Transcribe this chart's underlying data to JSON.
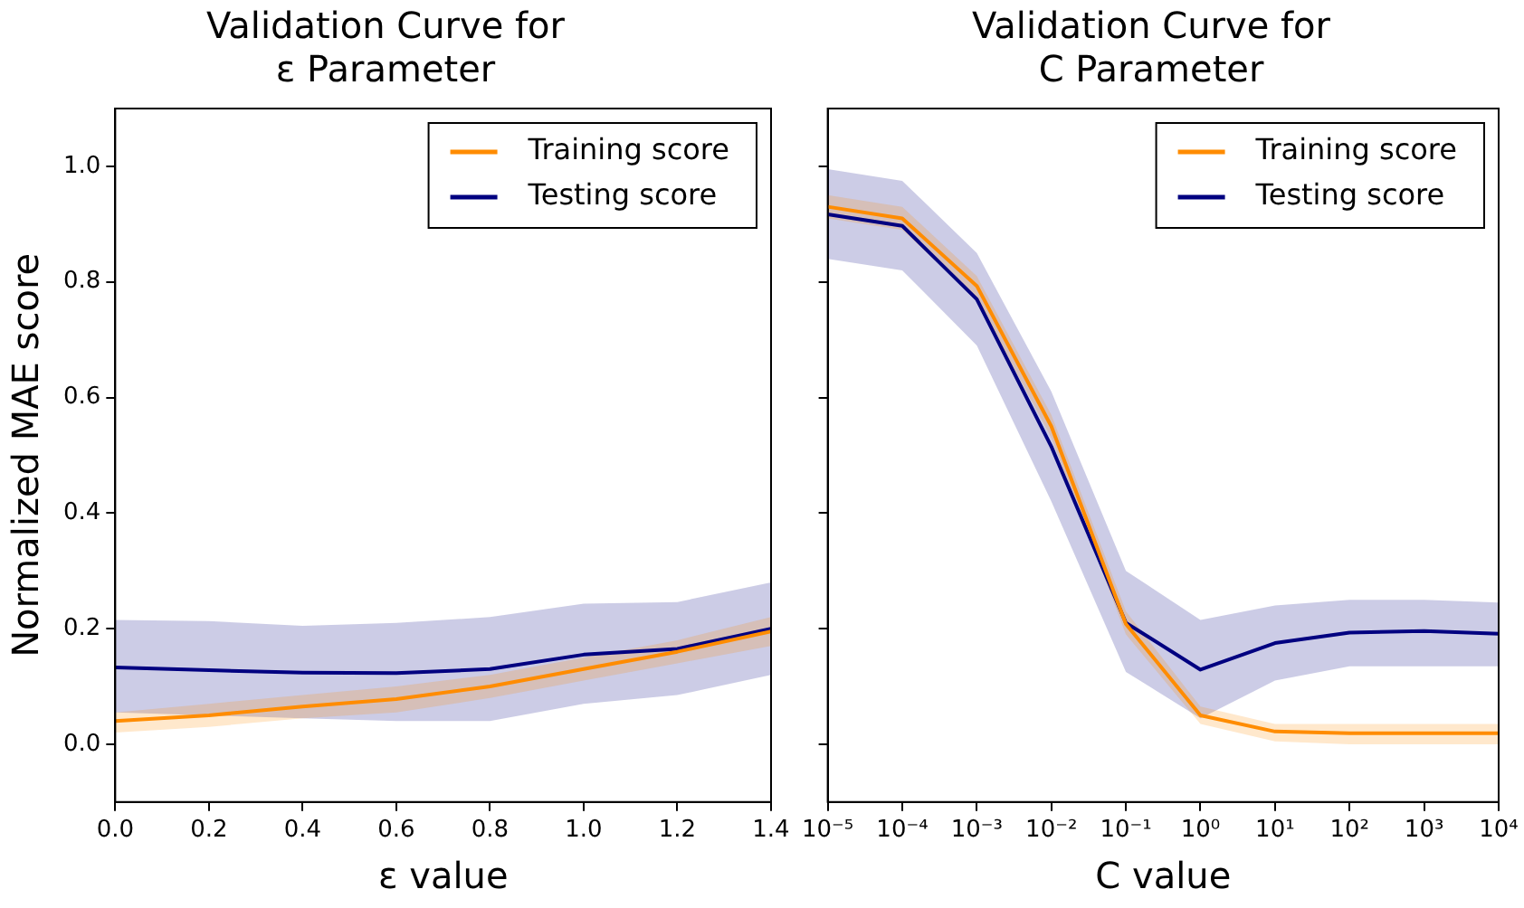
{
  "chart_data": [
    {
      "type": "line",
      "title": "Validation Curve for\nε Parameter",
      "xlabel": "ε value",
      "ylabel": "Normalized MAE score",
      "x": [
        0,
        0.2,
        0.4,
        0.6,
        0.8,
        1.0,
        1.2,
        1.4
      ],
      "series": [
        {
          "name": "Training score",
          "color": "#ff8c00",
          "values": [
            0.04,
            0.05,
            0.065,
            0.078,
            0.1,
            0.13,
            0.16,
            0.195
          ],
          "lower": [
            0.02,
            0.03,
            0.045,
            0.055,
            0.08,
            0.11,
            0.14,
            0.17
          ],
          "upper": [
            0.055,
            0.07,
            0.085,
            0.1,
            0.12,
            0.15,
            0.18,
            0.22
          ]
        },
        {
          "name": "Testing score",
          "color": "#000080",
          "values": [
            0.133,
            0.128,
            0.124,
            0.123,
            0.13,
            0.155,
            0.165,
            0.2
          ],
          "lower": [
            0.055,
            0.05,
            0.045,
            0.04,
            0.04,
            0.07,
            0.085,
            0.12
          ],
          "upper": [
            0.215,
            0.213,
            0.205,
            0.21,
            0.22,
            0.243,
            0.246,
            0.28
          ]
        }
      ],
      "xlim": [
        0,
        1.4
      ],
      "xticks": [
        {
          "value": 0,
          "label": "0.0"
        },
        0.2,
        0.4,
        0.6,
        0.8,
        {
          "value": 1,
          "label": "1.0"
        },
        1.2,
        1.4
      ],
      "ylim": [
        -0.1,
        1.1
      ],
      "yticks": [
        {
          "value": 0,
          "label": "0.0"
        },
        0.2,
        0.4,
        0.6,
        0.8,
        {
          "value": 1,
          "label": "1.0"
        }
      ],
      "legend": "top right",
      "grid": false,
      "marker": "none",
      "line_style": "solid"
    },
    {
      "type": "line",
      "title": "Validation Curve for\nC Parameter",
      "xlabel": "C value",
      "x": [
        1e-05,
        0.0001,
        0.001,
        0.01,
        0.1,
        1,
        10,
        100,
        1000,
        10000
      ],
      "series": [
        {
          "name": "Training score",
          "color": "#ff8c00",
          "values": [
            0.93,
            0.91,
            0.793,
            0.55,
            0.208,
            0.05,
            0.022,
            0.019,
            0.019,
            0.019
          ],
          "lower": [
            0.91,
            0.89,
            0.77,
            0.53,
            0.19,
            0.035,
            0.005,
            0.0,
            0.0,
            0.0
          ],
          "upper": [
            0.95,
            0.93,
            0.81,
            0.57,
            0.23,
            0.065,
            0.035,
            0.035,
            0.035,
            0.035
          ]
        },
        {
          "name": "Testing score",
          "color": "#000080",
          "values": [
            0.917,
            0.897,
            0.77,
            0.515,
            0.21,
            0.129,
            0.175,
            0.193,
            0.196,
            0.191
          ],
          "lower": [
            0.84,
            0.82,
            0.69,
            0.42,
            0.125,
            0.045,
            0.11,
            0.135,
            0.135,
            0.135
          ],
          "upper": [
            0.995,
            0.975,
            0.85,
            0.61,
            0.3,
            0.215,
            0.24,
            0.25,
            0.25,
            0.245
          ]
        }
      ],
      "log": "x",
      "xlim": [
        1e-05,
        10000
      ],
      "xticks": [
        {
          "value": 1e-05,
          "label": "10⁻⁵"
        },
        {
          "value": 0.0001,
          "label": "10⁻⁴"
        },
        {
          "value": 0.001,
          "label": "10⁻³"
        },
        {
          "value": 0.01,
          "label": "10⁻²"
        },
        {
          "value": 0.1,
          "label": "10⁻¹"
        },
        {
          "value": 1,
          "label": "10⁰"
        },
        {
          "value": 10,
          "label": "10¹"
        },
        {
          "value": 100,
          "label": "10²"
        },
        {
          "value": 1000,
          "label": "10³"
        },
        {
          "value": 10000,
          "label": "10⁴"
        }
      ],
      "ylim": [
        -0.1,
        1.1
      ],
      "yticks": [
        0,
        0.2,
        0.4,
        0.6,
        0.8,
        1
      ],
      "tick_labels": "x",
      "legend": "top right",
      "grid": false,
      "marker": "none",
      "line_style": "solid"
    }
  ]
}
